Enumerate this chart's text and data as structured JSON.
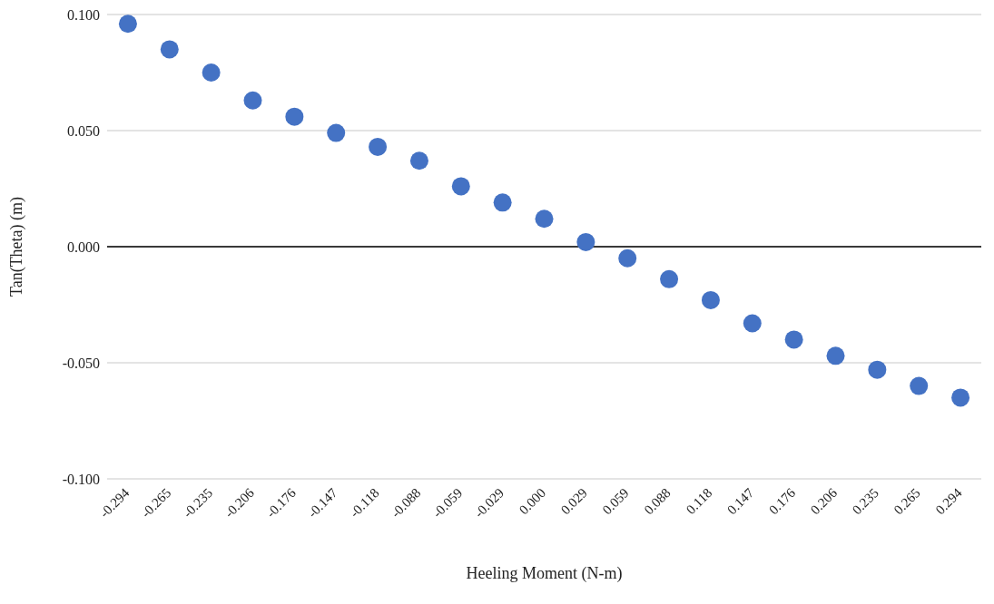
{
  "chart_data": {
    "type": "scatter",
    "xlabel": "Heeling Moment (N-m)",
    "ylabel": "Tan(Theta) (m)",
    "categories": [
      "-0.294",
      "-0.265",
      "-0.235",
      "-0.206",
      "-0.176",
      "-0.147",
      "-0.118",
      "-0.088",
      "-0.059",
      "-0.029",
      "0.000",
      "0.029",
      "0.059",
      "0.088",
      "0.118",
      "0.147",
      "0.176",
      "0.206",
      "0.235",
      "0.265",
      "0.294"
    ],
    "series": [
      {
        "color": "#4472c4",
        "values": [
          0.096,
          0.085,
          0.075,
          0.063,
          0.056,
          0.049,
          0.043,
          0.037,
          0.026,
          0.019,
          0.012,
          0.002,
          -0.005,
          -0.014,
          -0.023,
          -0.033,
          -0.04,
          -0.047,
          -0.053,
          -0.06,
          -0.065
        ]
      }
    ],
    "ylim": [
      -0.1,
      0.1
    ],
    "yticks": [
      {
        "value": -0.1,
        "label": "-0.100"
      },
      {
        "value": -0.05,
        "label": "-0.050"
      },
      {
        "value": 0,
        "label": "0.000"
      },
      {
        "value": 0.05,
        "label": "0.050"
      },
      {
        "value": 0.1,
        "label": "0.100"
      }
    ],
    "grid": "y",
    "legend": false,
    "marker": "circle",
    "ref_lines": [
      {
        "axis": "y",
        "value": 0,
        "color": "#000000"
      }
    ]
  }
}
